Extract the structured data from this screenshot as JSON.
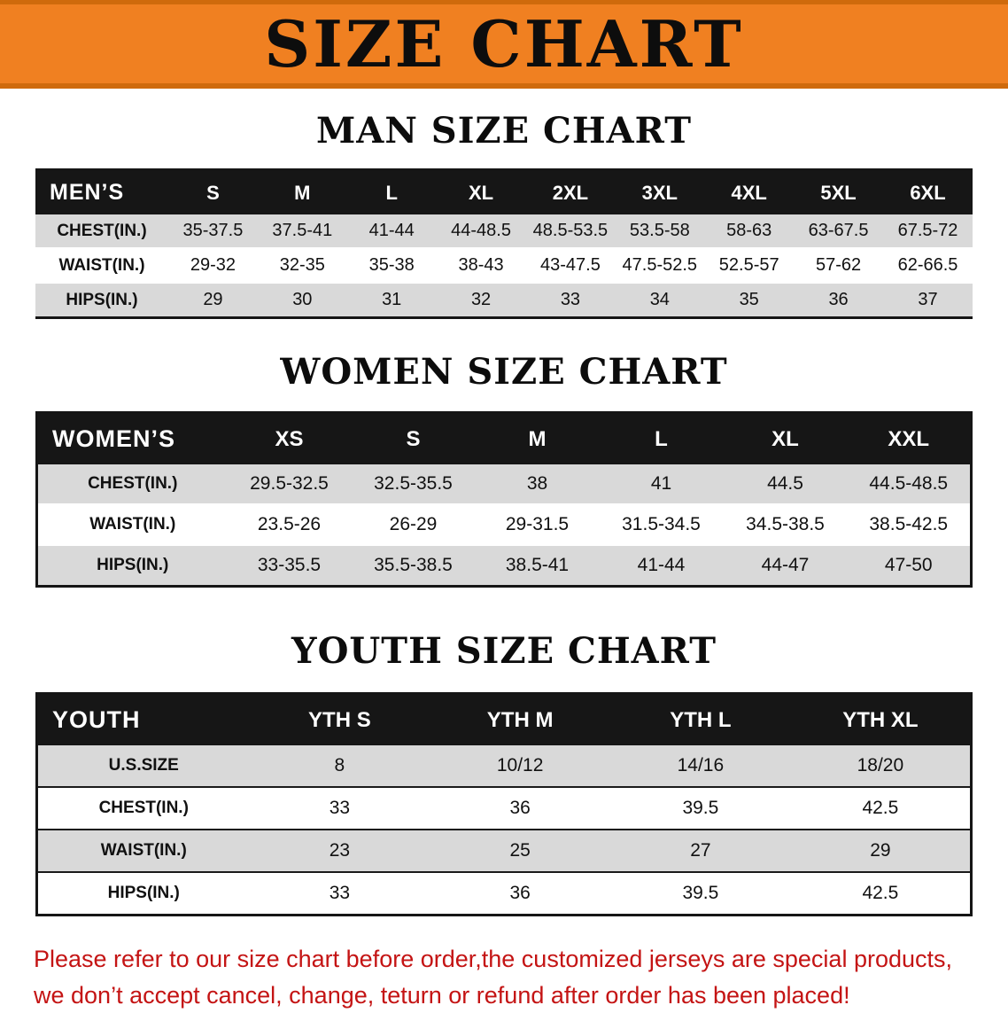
{
  "banner": {
    "title": "SIZE CHART"
  },
  "colors": {
    "banner_orange": "#f08021",
    "banner_border": "#cf6a0c",
    "table_header_bg": "#161616",
    "row_alt_gray": "#d9d9d9",
    "notice_red": "#c41414"
  },
  "sections": {
    "men": {
      "heading": "MAN SIZE CHART",
      "table": {
        "header": [
          "MEN’S",
          "S",
          "M",
          "L",
          "XL",
          "2XL",
          "3XL",
          "4XL",
          "5XL",
          "6XL"
        ],
        "rows": [
          [
            "CHEST(IN.)",
            "35-37.5",
            "37.5-41",
            "41-44",
            "44-48.5",
            "48.5-53.5",
            "53.5-58",
            "58-63",
            "63-67.5",
            "67.5-72"
          ],
          [
            "WAIST(IN.)",
            "29-32",
            "32-35",
            "35-38",
            "38-43",
            "43-47.5",
            "47.5-52.5",
            "52.5-57",
            "57-62",
            "62-66.5"
          ],
          [
            "HIPS(IN.)",
            "29",
            "30",
            "31",
            "32",
            "33",
            "34",
            "35",
            "36",
            "37"
          ]
        ]
      }
    },
    "women": {
      "heading": "WOMEN SIZE CHART",
      "table": {
        "header": [
          "WOMEN’S",
          "XS",
          "S",
          "M",
          "L",
          "XL",
          "XXL"
        ],
        "rows": [
          [
            "CHEST(IN.)",
            "29.5-32.5",
            "32.5-35.5",
            "38",
            "41",
            "44.5",
            "44.5-48.5"
          ],
          [
            "WAIST(IN.)",
            "23.5-26",
            "26-29",
            "29-31.5",
            "31.5-34.5",
            "34.5-38.5",
            "38.5-42.5"
          ],
          [
            "HIPS(IN.)",
            "33-35.5",
            "35.5-38.5",
            "38.5-41",
            "41-44",
            "44-47",
            "47-50"
          ]
        ]
      }
    },
    "youth": {
      "heading": "YOUTH SIZE CHART",
      "table": {
        "header": [
          "YOUTH",
          "YTH S",
          "YTH M",
          "YTH L",
          "YTH XL"
        ],
        "rows": [
          [
            "U.S.SIZE",
            "8",
            "10/12",
            "14/16",
            "18/20"
          ],
          [
            "CHEST(IN.)",
            "33",
            "36",
            "39.5",
            "42.5"
          ],
          [
            "WAIST(IN.)",
            "23",
            "25",
            "27",
            "29"
          ],
          [
            "HIPS(IN.)",
            "33",
            "36",
            "39.5",
            "42.5"
          ]
        ]
      }
    }
  },
  "footer": {
    "line1": "Please refer to our size chart before order,the customized jerseys are special products,",
    "line2": "we don’t accept cancel, change, teturn or refund after order has been placed!"
  }
}
